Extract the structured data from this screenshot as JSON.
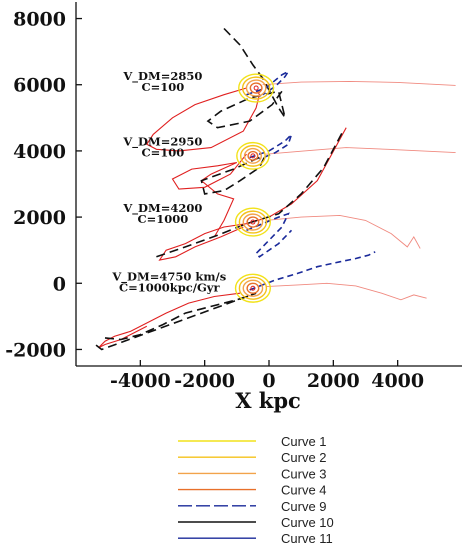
{
  "chart_data": {
    "type": "line",
    "title": "",
    "xlabel": "X kpc",
    "ylabel": "",
    "xlim": [
      -6000,
      6000
    ],
    "ylim": [
      -2500,
      8500
    ],
    "xticks": [
      -4000,
      -2000,
      0,
      2000,
      4000
    ],
    "xtick_labels": [
      "-4000",
      "-2000",
      "0",
      "2000",
      "4000"
    ],
    "yticks": [
      -2000,
      0,
      2000,
      4000,
      6000,
      8000
    ],
    "ytick_labels": [
      "-2000",
      "0",
      "2000",
      "4000",
      "6000",
      "8000"
    ],
    "grid": false,
    "legend_position": "bottom",
    "annotations": [
      {
        "lines": [
          "V_DM=2850",
          "C=100"
        ],
        "x": -3300,
        "y": 6150
      },
      {
        "lines": [
          "V_DM=2950",
          "C=100"
        ],
        "x": -3300,
        "y": 4170
      },
      {
        "lines": [
          "V_DM=4200",
          "C=1000"
        ],
        "x": -3300,
        "y": 2150
      },
      {
        "lines": [
          "V_DM=4750 km/s",
          "C=1000kpc/Gyr"
        ],
        "x": -3100,
        "y": 80
      }
    ],
    "legend": [
      {
        "label": "Curve 1",
        "color": "#f2e21a",
        "dash": "solid"
      },
      {
        "label": "Curve 2",
        "color": "#f4c21a",
        "dash": "solid"
      },
      {
        "label": "Curve 3",
        "color": "#f2a34a",
        "dash": "solid"
      },
      {
        "label": "Curve 4",
        "color": "#e8702a",
        "dash": "solid"
      },
      {
        "label": "Curve 9",
        "color": "#1a2a9a",
        "dash": "long-dash"
      },
      {
        "label": "Curve 10",
        "color": "#111111",
        "dash": "solid"
      },
      {
        "label": "Curve 11",
        "color": "#1a2a9a",
        "dash": "solid"
      }
    ],
    "panels": [
      {
        "name": "V_DM=2850",
        "center": [
          -400,
          5900
        ],
        "contours": [
          [
            540,
            420
          ],
          [
            420,
            330
          ],
          [
            300,
            240
          ],
          [
            180,
            150
          ]
        ],
        "red_trail": [
          [
            -700,
            5900
          ],
          [
            -1400,
            5700
          ],
          [
            -2300,
            5400
          ],
          [
            -3000,
            5000
          ],
          [
            -3600,
            4500
          ],
          [
            -3800,
            4200
          ],
          [
            -3500,
            4050
          ],
          [
            -2800,
            4000
          ],
          [
            -1800,
            4100
          ],
          [
            -800,
            4600
          ],
          [
            -400,
            5300
          ],
          [
            -300,
            5700
          ],
          [
            -350,
            5800
          ]
        ],
        "red_stream": [
          [
            -200,
            6000
          ],
          [
            1000,
            6080
          ],
          [
            2500,
            6100
          ],
          [
            4000,
            6070
          ],
          [
            5800,
            5980
          ]
        ],
        "black_dash": [
          [
            -1400,
            7700
          ],
          [
            -900,
            7200
          ],
          [
            -500,
            6600
          ],
          [
            -200,
            6200
          ],
          [
            300,
            5300
          ],
          [
            500,
            5000
          ],
          [
            300,
            5800
          ],
          [
            -600,
            5600
          ],
          [
            -1500,
            5200
          ],
          [
            -1900,
            4900
          ],
          [
            -1600,
            4700
          ],
          [
            -600,
            4900
          ],
          [
            100,
            5400
          ],
          [
            400,
            5800
          ]
        ],
        "blue_dash": [
          [
            -700,
            5700
          ],
          [
            -100,
            5900
          ],
          [
            400,
            6300
          ],
          [
            600,
            6400
          ],
          [
            500,
            6250
          ],
          [
            200,
            5950
          ],
          [
            -200,
            5700
          ]
        ]
      },
      {
        "name": "V_DM=2950",
        "center": [
          -500,
          3850
        ],
        "contours": [
          [
            500,
            400
          ],
          [
            380,
            310
          ],
          [
            260,
            220
          ],
          [
            150,
            130
          ]
        ],
        "red_trail": [
          [
            -700,
            3900
          ],
          [
            -1200,
            3300
          ],
          [
            -2000,
            2900
          ],
          [
            -2800,
            2850
          ],
          [
            -3000,
            3150
          ],
          [
            -2400,
            3450
          ],
          [
            -1600,
            3550
          ],
          [
            -1000,
            3650
          ],
          [
            -1800,
            3300
          ],
          [
            -2100,
            3100
          ],
          [
            -1600,
            2700
          ],
          [
            -1100,
            2550
          ],
          [
            -1400,
            1900
          ],
          [
            -1700,
            1400
          ]
        ],
        "red_stream": [
          [
            -100,
            3900
          ],
          [
            1100,
            4000
          ],
          [
            2400,
            4100
          ],
          [
            3700,
            4050
          ],
          [
            5800,
            3950
          ]
        ],
        "black_dash": [
          [
            -300,
            3800
          ],
          [
            -1100,
            3450
          ],
          [
            -2100,
            3100
          ],
          [
            -2000,
            2700
          ],
          [
            -1400,
            2800
          ],
          [
            -900,
            3100
          ],
          [
            -300,
            3500
          ],
          [
            -100,
            3900
          ]
        ],
        "blue_dash": [
          [
            -600,
            3800
          ],
          [
            0,
            4000
          ],
          [
            500,
            4300
          ],
          [
            700,
            4500
          ],
          [
            600,
            4200
          ],
          [
            200,
            3950
          ],
          [
            -300,
            3750
          ]
        ]
      },
      {
        "name": "V_DM=4200",
        "center": [
          -500,
          1850
        ],
        "contours": [
          [
            540,
            420
          ],
          [
            420,
            330
          ],
          [
            300,
            240
          ],
          [
            180,
            150
          ]
        ],
        "red_trail": [
          [
            -800,
            1700
          ],
          [
            -1500,
            1400
          ],
          [
            -2300,
            1100
          ],
          [
            -2900,
            800
          ],
          [
            -3400,
            700
          ],
          [
            -3200,
            1000
          ],
          [
            -2600,
            1200
          ],
          [
            -2000,
            1500
          ],
          [
            -1400,
            1700
          ],
          [
            -700,
            1800
          ],
          [
            0,
            2000
          ],
          [
            700,
            2400
          ],
          [
            1500,
            3100
          ],
          [
            2400,
            4700
          ]
        ],
        "red_stream": [
          [
            -100,
            1900
          ],
          [
            1000,
            2000
          ],
          [
            2200,
            2050
          ],
          [
            3000,
            1900
          ],
          [
            3800,
            1500
          ],
          [
            4300,
            1100
          ],
          [
            4500,
            1400
          ],
          [
            4700,
            1050
          ]
        ],
        "black_dash": [
          [
            -3500,
            800
          ],
          [
            -2600,
            1100
          ],
          [
            -1600,
            1450
          ],
          [
            -700,
            1800
          ],
          [
            300,
            2100
          ],
          [
            1000,
            2700
          ],
          [
            1700,
            3500
          ],
          [
            2300,
            4600
          ]
        ],
        "blue_dash": [
          [
            -700,
            1600
          ],
          [
            -200,
            1800
          ],
          [
            300,
            2000
          ],
          [
            600,
            2100
          ],
          [
            400,
            1700
          ],
          [
            -100,
            1200
          ],
          [
            -400,
            900
          ],
          [
            -300,
            800
          ],
          [
            300,
            1200
          ],
          [
            700,
            1600
          ]
        ]
      },
      {
        "name": "V_DM=4750 km/s",
        "center": [
          -500,
          -150
        ],
        "contours": [
          [
            540,
            420
          ],
          [
            420,
            330
          ],
          [
            300,
            240
          ],
          [
            180,
            150
          ]
        ],
        "red_trail": [
          [
            -900,
            -300
          ],
          [
            -1700,
            -400
          ],
          [
            -2500,
            -600
          ],
          [
            -3200,
            -900
          ],
          [
            -3800,
            -1200
          ],
          [
            -4300,
            -1450
          ],
          [
            -4800,
            -1600
          ],
          [
            -5100,
            -1750
          ],
          [
            -5300,
            -1950
          ],
          [
            -5100,
            -1850
          ],
          [
            -4600,
            -1700
          ],
          [
            -4200,
            -1500
          ],
          [
            -3800,
            -1300
          ]
        ],
        "red_stream": [
          [
            -100,
            -100
          ],
          [
            900,
            -50
          ],
          [
            1800,
            0
          ],
          [
            2700,
            -80
          ],
          [
            3500,
            -300
          ],
          [
            4100,
            -500
          ],
          [
            4500,
            -350
          ],
          [
            4900,
            -450
          ]
        ],
        "black_dash": [
          [
            -5100,
            -1650
          ],
          [
            -4600,
            -1700
          ],
          [
            -4000,
            -1550
          ],
          [
            -3300,
            -1250
          ],
          [
            -2600,
            -900
          ],
          [
            -1800,
            -700
          ],
          [
            -1000,
            -500
          ],
          [
            -400,
            -300
          ],
          [
            -5200,
            -2000
          ],
          [
            -5400,
            -1850
          ]
        ],
        "blue_dash": [
          [
            -600,
            -200
          ],
          [
            200,
            100
          ],
          [
            900,
            300
          ],
          [
            1500,
            500
          ],
          [
            2200,
            650
          ],
          [
            2700,
            750
          ],
          [
            3100,
            850
          ],
          [
            3300,
            950
          ]
        ]
      }
    ]
  }
}
